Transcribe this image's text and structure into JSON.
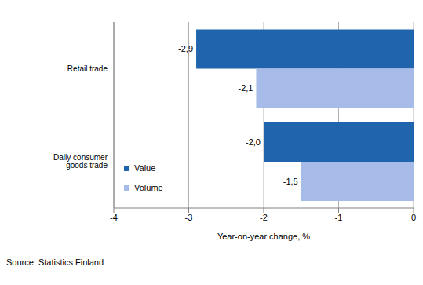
{
  "chart_data": {
    "type": "bar",
    "orientation": "horizontal",
    "categories": [
      "Retail trade",
      "Daily consumer goods trade"
    ],
    "series": [
      {
        "name": "Value",
        "color": "#1f64ad",
        "values": [
          -2.9,
          -2.0
        ],
        "value_labels": [
          "-2,9",
          "-2,0"
        ]
      },
      {
        "name": "Volume",
        "color": "#a7bbe8",
        "values": [
          -2.1,
          -1.5
        ],
        "value_labels": [
          "-2,1",
          "-1,5"
        ]
      }
    ],
    "x_label": "Year-on-year change, %",
    "xlim": [
      -4,
      0
    ],
    "xticks": [
      -4,
      -3,
      -2,
      -1,
      0
    ],
    "grid": true,
    "data_labels": true,
    "legend": "lower left",
    "annotations": [
      "Source: Statistics Finland"
    ]
  }
}
